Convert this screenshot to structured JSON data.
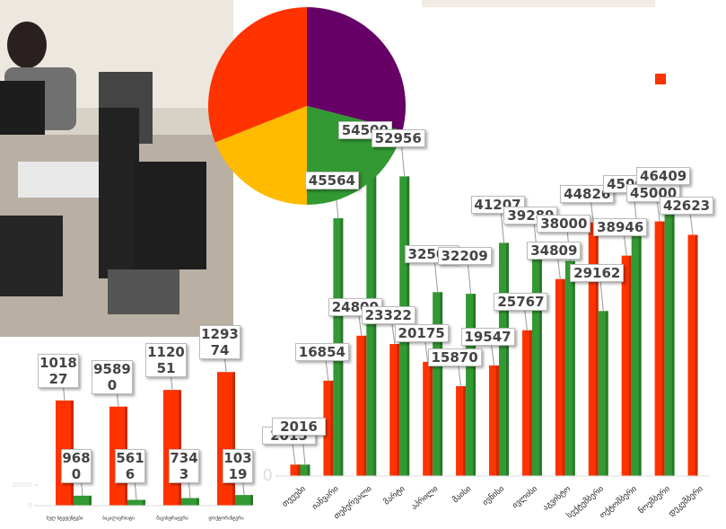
{
  "chart_data": [
    {
      "type": "pie",
      "series": [
        {
          "name": "purple",
          "color": "#660066",
          "values": [
            29
          ]
        },
        {
          "name": "green",
          "color": "#339933",
          "values": [
            21
          ]
        },
        {
          "name": "yellow",
          "color": "#ffbb00",
          "values": [
            19
          ]
        },
        {
          "name": "red",
          "color": "#ff3300",
          "values": [
            31
          ]
        }
      ]
    },
    {
      "type": "bar",
      "categories": [
        "სულ სტუდენტები",
        "ბაკალავრიატი",
        "მაგისტრატურა",
        "დოქტორანტურა"
      ],
      "series": [
        {
          "name": "red",
          "color": "#ff3300",
          "values": [
            101827,
            95890,
            112051,
            129374
          ]
        },
        {
          "name": "green",
          "color": "#339933",
          "values": [
            9680,
            5616,
            7343,
            10319
          ]
        }
      ],
      "ylim": [
        0,
        160000
      ],
      "yticks": [
        0,
        20000
      ]
    },
    {
      "type": "bar",
      "categories": [
        "თვეები",
        "იანვარი",
        "თებერვალი",
        "მარტი",
        "აპრილი",
        "მაისი",
        "ივნისი",
        "ივლისი",
        "აგვისტო",
        "სექტემბერი",
        "ოქტომბერი",
        "ნოემბერი",
        "დეკემბერი"
      ],
      "series": [
        {
          "name": "red",
          "color": "#ff3300",
          "values": [
            2015,
            16854,
            24800,
            23322,
            20175,
            15870,
            19547,
            25767,
            34809,
            44826,
            38946,
            45000,
            42623
          ]
        },
        {
          "name": "green",
          "color": "#339933",
          "values": [
            2016,
            45564,
            54500,
            52956,
            32500,
            32209,
            41207,
            39289,
            38000,
            29162,
            45000,
            46409,
            null
          ]
        }
      ],
      "ylim": [
        0,
        60000
      ],
      "yticks": [
        0
      ]
    }
  ]
}
